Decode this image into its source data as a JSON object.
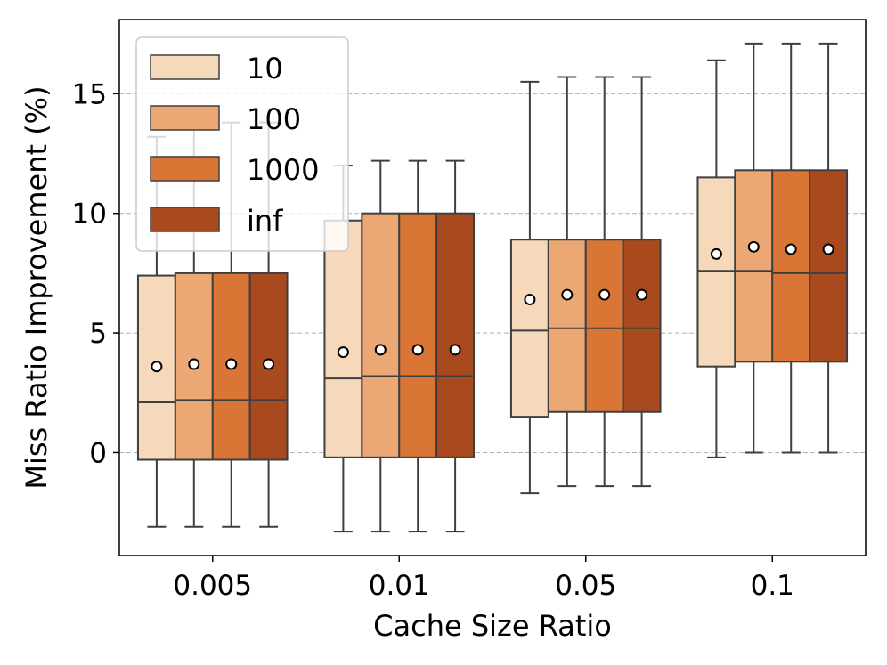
{
  "chart_data": {
    "type": "boxplot",
    "title": "",
    "xlabel": "Cache Size Ratio",
    "ylabel": "Miss Ratio Improvement (%)",
    "ylim": [
      -4.3,
      18.1
    ],
    "yticks": [
      0,
      5,
      10,
      15
    ],
    "grid": "horizontal dashed",
    "legend_position": "upper-left",
    "categories": [
      "0.005",
      "0.01",
      "0.05",
      "0.1"
    ],
    "series": [
      {
        "name": "10",
        "color": "#f5d9ba",
        "boxes": [
          {
            "whislo": -3.1,
            "q1": -0.3,
            "median": 2.1,
            "q3": 7.4,
            "whishi": 13.2,
            "mean": 3.6
          },
          {
            "whislo": -3.3,
            "q1": -0.2,
            "median": 3.1,
            "q3": 9.7,
            "whishi": 12.0,
            "mean": 4.2
          },
          {
            "whislo": -1.7,
            "q1": 1.5,
            "median": 5.1,
            "q3": 8.9,
            "whishi": 15.5,
            "mean": 6.4
          },
          {
            "whislo": -0.2,
            "q1": 3.6,
            "median": 7.6,
            "q3": 11.5,
            "whishi": 16.4,
            "mean": 8.3
          }
        ]
      },
      {
        "name": "100",
        "color": "#eba874",
        "boxes": [
          {
            "whislo": -3.1,
            "q1": -0.3,
            "median": 2.2,
            "q3": 7.5,
            "whishi": 13.6,
            "mean": 3.7
          },
          {
            "whislo": -3.3,
            "q1": -0.2,
            "median": 3.2,
            "q3": 10.0,
            "whishi": 12.2,
            "mean": 4.3
          },
          {
            "whislo": -1.4,
            "q1": 1.7,
            "median": 5.2,
            "q3": 8.9,
            "whishi": 15.7,
            "mean": 6.6
          },
          {
            "whislo": 0.0,
            "q1": 3.8,
            "median": 7.6,
            "q3": 11.8,
            "whishi": 17.1,
            "mean": 8.6
          }
        ]
      },
      {
        "name": "1000",
        "color": "#d97636",
        "boxes": [
          {
            "whislo": -3.1,
            "q1": -0.3,
            "median": 2.2,
            "q3": 7.5,
            "whishi": 13.8,
            "mean": 3.7
          },
          {
            "whislo": -3.3,
            "q1": -0.2,
            "median": 3.2,
            "q3": 10.0,
            "whishi": 12.2,
            "mean": 4.3
          },
          {
            "whislo": -1.4,
            "q1": 1.7,
            "median": 5.2,
            "q3": 8.9,
            "whishi": 15.7,
            "mean": 6.6
          },
          {
            "whislo": 0.0,
            "q1": 3.8,
            "median": 7.5,
            "q3": 11.8,
            "whishi": 17.1,
            "mean": 8.5
          }
        ]
      },
      {
        "name": "inf",
        "color": "#a94a1e",
        "boxes": [
          {
            "whislo": -3.1,
            "q1": -0.3,
            "median": 2.2,
            "q3": 7.5,
            "whishi": 13.8,
            "mean": 3.7
          },
          {
            "whislo": -3.3,
            "q1": -0.2,
            "median": 3.2,
            "q3": 10.0,
            "whishi": 12.2,
            "mean": 4.3
          },
          {
            "whislo": -1.4,
            "q1": 1.7,
            "median": 5.2,
            "q3": 8.9,
            "whishi": 15.7,
            "mean": 6.6
          },
          {
            "whislo": 0.0,
            "q1": 3.8,
            "median": 7.5,
            "q3": 11.8,
            "whishi": 17.1,
            "mean": 8.5
          }
        ]
      }
    ]
  }
}
